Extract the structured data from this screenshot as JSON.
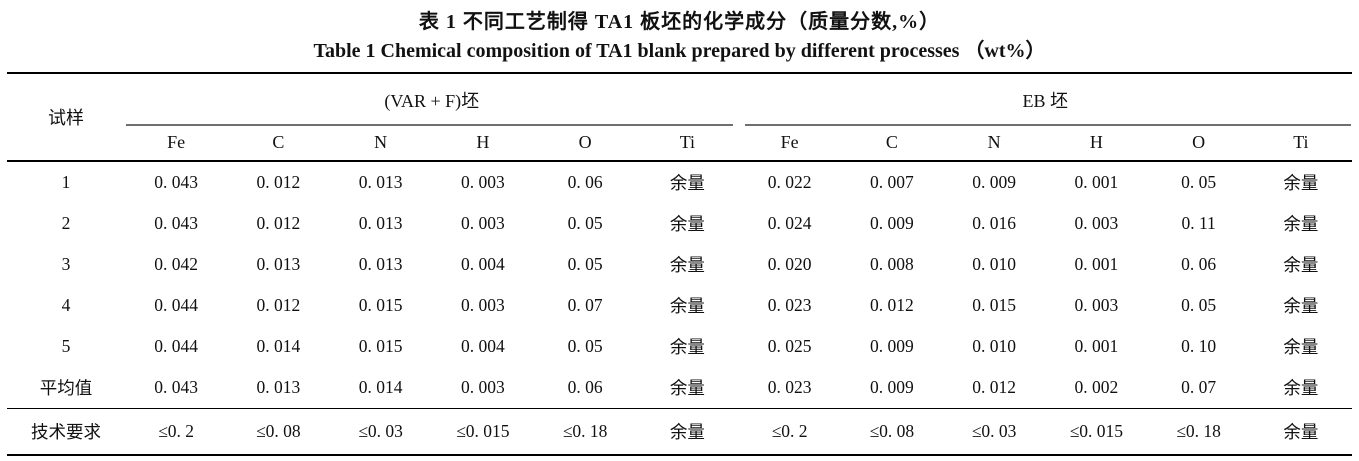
{
  "caption": {
    "title_zh": "表 1  不同工艺制得 TA1 板坯的化学成分（质量分数,%）",
    "title_en": "Table 1  Chemical composition of TA1 blank prepared by different processes （wt%）"
  },
  "table": {
    "sample_header": "试样",
    "groups": [
      {
        "label": "(VAR + F)坯"
      },
      {
        "label": "EB 坯"
      }
    ],
    "element_headers": [
      "Fe",
      "C",
      "N",
      "H",
      "O",
      "Ti"
    ],
    "rows": [
      {
        "label": "1",
        "var": [
          "0. 043",
          "0. 012",
          "0. 013",
          "0. 003",
          "0. 06",
          "余量"
        ],
        "eb": [
          "0. 022",
          "0. 007",
          "0. 009",
          "0. 001",
          "0. 05",
          "余量"
        ],
        "is_requirement": false
      },
      {
        "label": "2",
        "var": [
          "0. 043",
          "0. 012",
          "0. 013",
          "0. 003",
          "0. 05",
          "余量"
        ],
        "eb": [
          "0. 024",
          "0. 009",
          "0. 016",
          "0. 003",
          "0. 11",
          "余量"
        ],
        "is_requirement": false
      },
      {
        "label": "3",
        "var": [
          "0. 042",
          "0. 013",
          "0. 013",
          "0. 004",
          "0. 05",
          "余量"
        ],
        "eb": [
          "0. 020",
          "0. 008",
          "0. 010",
          "0. 001",
          "0. 06",
          "余量"
        ],
        "is_requirement": false
      },
      {
        "label": "4",
        "var": [
          "0. 044",
          "0. 012",
          "0. 015",
          "0. 003",
          "0. 07",
          "余量"
        ],
        "eb": [
          "0. 023",
          "0. 012",
          "0. 015",
          "0. 003",
          "0. 05",
          "余量"
        ],
        "is_requirement": false
      },
      {
        "label": "5",
        "var": [
          "0. 044",
          "0. 014",
          "0. 015",
          "0. 004",
          "0. 05",
          "余量"
        ],
        "eb": [
          "0. 025",
          "0. 009",
          "0. 010",
          "0. 001",
          "0. 10",
          "余量"
        ],
        "is_requirement": false
      },
      {
        "label": "平均值",
        "var": [
          "0. 043",
          "0. 013",
          "0. 014",
          "0. 003",
          "0. 06",
          "余量"
        ],
        "eb": [
          "0. 023",
          "0. 009",
          "0. 012",
          "0. 002",
          "0. 07",
          "余量"
        ],
        "is_requirement": false
      },
      {
        "label": "技术要求",
        "var": [
          "≤0. 2",
          "≤0. 08",
          "≤0. 03",
          "≤0. 015",
          "≤0. 18",
          "余量"
        ],
        "eb": [
          "≤0. 2",
          "≤0. 08",
          "≤0. 03",
          "≤0. 015",
          "≤0. 18",
          "余量"
        ],
        "is_requirement": true
      }
    ]
  }
}
